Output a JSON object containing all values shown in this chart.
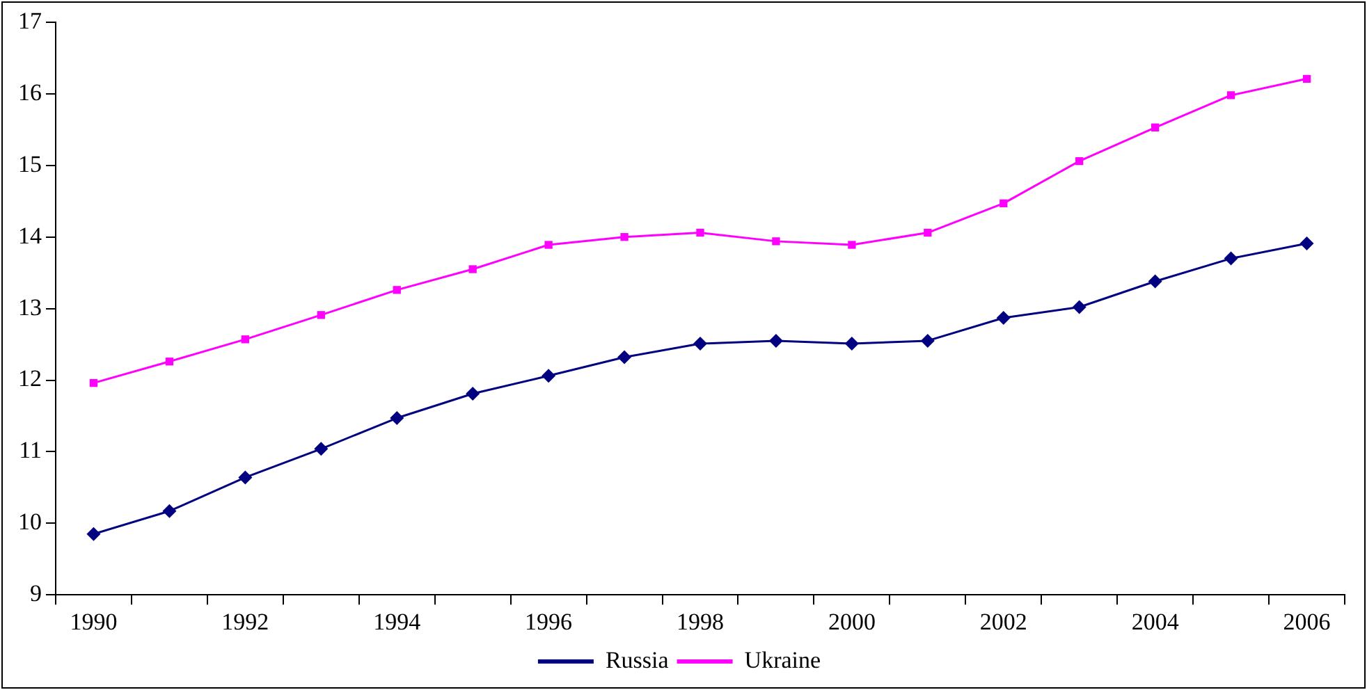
{
  "chart_data": {
    "type": "line",
    "categories": [
      "1990",
      null,
      "1992",
      null,
      "1994",
      null,
      "1996",
      null,
      "1998",
      null,
      "2000",
      null,
      "2002",
      null,
      "2004",
      null,
      "2006"
    ],
    "series": [
      {
        "name": "Russia",
        "color": "#000080",
        "marker": "diamond",
        "values": [
          9.85,
          10.17,
          10.64,
          11.04,
          11.47,
          11.81,
          12.06,
          12.32,
          12.51,
          12.55,
          12.51,
          12.55,
          12.87,
          13.02,
          13.38,
          13.7,
          13.91
        ]
      },
      {
        "name": "Ukraine",
        "color": "#ff00ff",
        "marker": "square",
        "values": [
          11.96,
          12.26,
          12.57,
          12.91,
          13.26,
          13.55,
          13.89,
          14.0,
          14.06,
          13.94,
          13.89,
          14.06,
          14.47,
          15.06,
          15.53,
          15.98,
          16.21
        ]
      }
    ],
    "ylim": [
      9,
      17
    ],
    "yticks": [
      9,
      10,
      11,
      12,
      13,
      14,
      15,
      16,
      17
    ],
    "grid": false,
    "legend": "bottom",
    "line_style": "solid"
  }
}
